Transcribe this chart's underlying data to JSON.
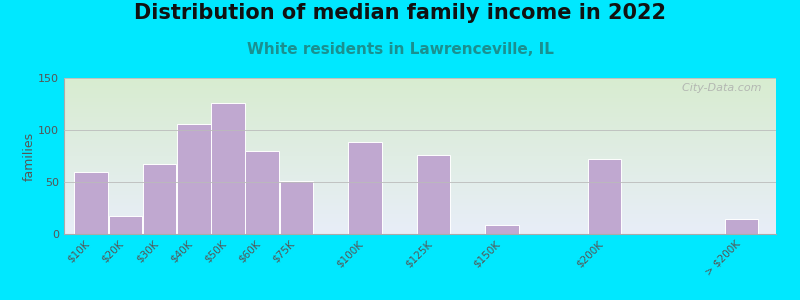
{
  "title": "Distribution of median family income in 2022",
  "subtitle": "White residents in Lawrenceville, IL",
  "ylabel": "families",
  "categories": [
    "$10K",
    "$20K",
    "$30K",
    "$40K",
    "$50K",
    "$60K",
    "$75K",
    "$100K",
    "$125K",
    "$150K",
    "$200K",
    "> $200K"
  ],
  "values": [
    60,
    17,
    67,
    106,
    126,
    80,
    51,
    88,
    76,
    9,
    72,
    14
  ],
  "bar_color": "#c0a8d0",
  "bar_edge_color": "#ffffff",
  "background_outer": "#00e8ff",
  "background_inner_top": "#d8ecd0",
  "background_inner_bottom": "#e8eef8",
  "ylim": [
    0,
    150
  ],
  "yticks": [
    0,
    50,
    100,
    150
  ],
  "title_fontsize": 15,
  "subtitle_fontsize": 11,
  "subtitle_color": "#1a9090",
  "ylabel_fontsize": 9,
  "watermark": "  City-Data.com",
  "bar_positions": [
    0,
    1,
    2,
    3,
    4,
    5,
    6,
    8,
    10,
    12,
    15,
    19
  ],
  "bar_widths": [
    1,
    1,
    1,
    1,
    1,
    1,
    1,
    1,
    1,
    1,
    1,
    1
  ]
}
